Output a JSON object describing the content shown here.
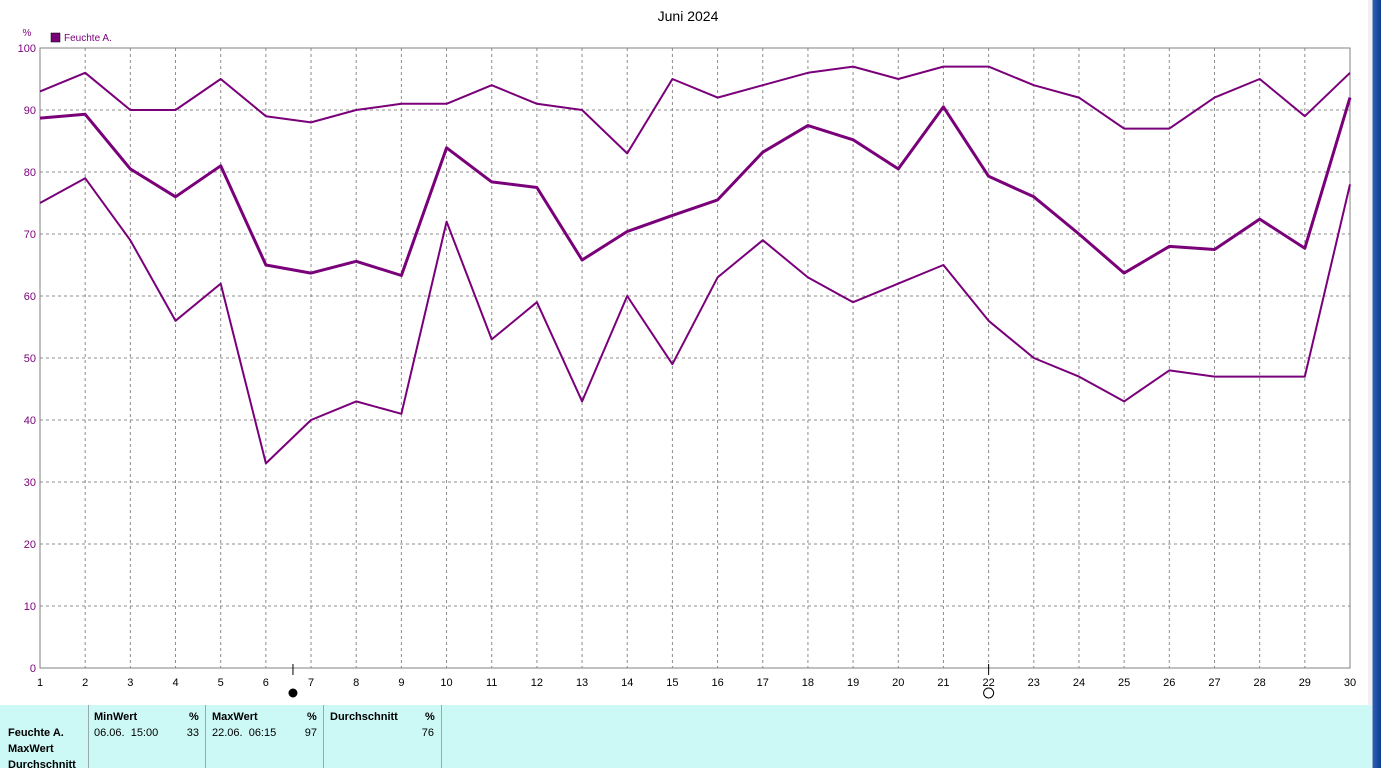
{
  "chart_data": {
    "type": "line",
    "title": "Juni 2024",
    "ylabel": "%",
    "ylim": [
      0,
      100
    ],
    "yticks": [
      0,
      10,
      20,
      30,
      40,
      50,
      60,
      70,
      80,
      90,
      100
    ],
    "x": [
      1,
      2,
      3,
      4,
      5,
      6,
      7,
      8,
      9,
      10,
      11,
      12,
      13,
      14,
      15,
      16,
      17,
      18,
      19,
      20,
      21,
      22,
      23,
      24,
      25,
      26,
      27,
      28,
      29,
      30
    ],
    "grid": true,
    "legend": {
      "position": "top-left",
      "entries": [
        "Feuchte A."
      ]
    },
    "color": "#7a007a",
    "series": [
      {
        "role": "max",
        "values": [
          93,
          96,
          90,
          90,
          95,
          89,
          88,
          90,
          91,
          91,
          94,
          91,
          90,
          83,
          95,
          92,
          94,
          96,
          97,
          95,
          97,
          97,
          94,
          92,
          87,
          87,
          92,
          95,
          89,
          96
        ]
      },
      {
        "role": "mean",
        "values": [
          88.7,
          89.3,
          80.5,
          76,
          81,
          65,
          63.7,
          65.6,
          63.3,
          83.9,
          78.4,
          77.5,
          65.8,
          70.4,
          73,
          75.5,
          83.2,
          87.5,
          85.2,
          80.5,
          90.5,
          79.3,
          76,
          70,
          63.7,
          68,
          67.5,
          72.4,
          67.7,
          92
        ]
      },
      {
        "role": "min",
        "values": [
          75,
          79,
          69,
          56,
          62,
          33,
          40,
          43,
          41,
          72,
          53,
          59,
          43,
          60,
          49,
          63,
          69,
          63,
          59,
          62,
          65,
          56,
          50,
          47,
          43,
          48,
          47,
          47,
          47,
          78
        ]
      }
    ],
    "markers": [
      {
        "type": "min",
        "x": 6.6,
        "symbol": "filled-circle"
      },
      {
        "type": "max",
        "x": 22,
        "symbol": "open-circle"
      }
    ]
  },
  "stats": {
    "row_labels": [
      "Feuchte A.",
      "MaxWert",
      "Durchschnitt"
    ],
    "columns": [
      {
        "header": "MinWert",
        "unit": "%",
        "time": "06.06.  15:00",
        "value": "33"
      },
      {
        "header": "MaxWert",
        "unit": "%",
        "time": "22.06.  06:15",
        "value": "97"
      },
      {
        "header": "Durchschnitt",
        "unit": "%",
        "time": "",
        "value": "76"
      }
    ]
  }
}
